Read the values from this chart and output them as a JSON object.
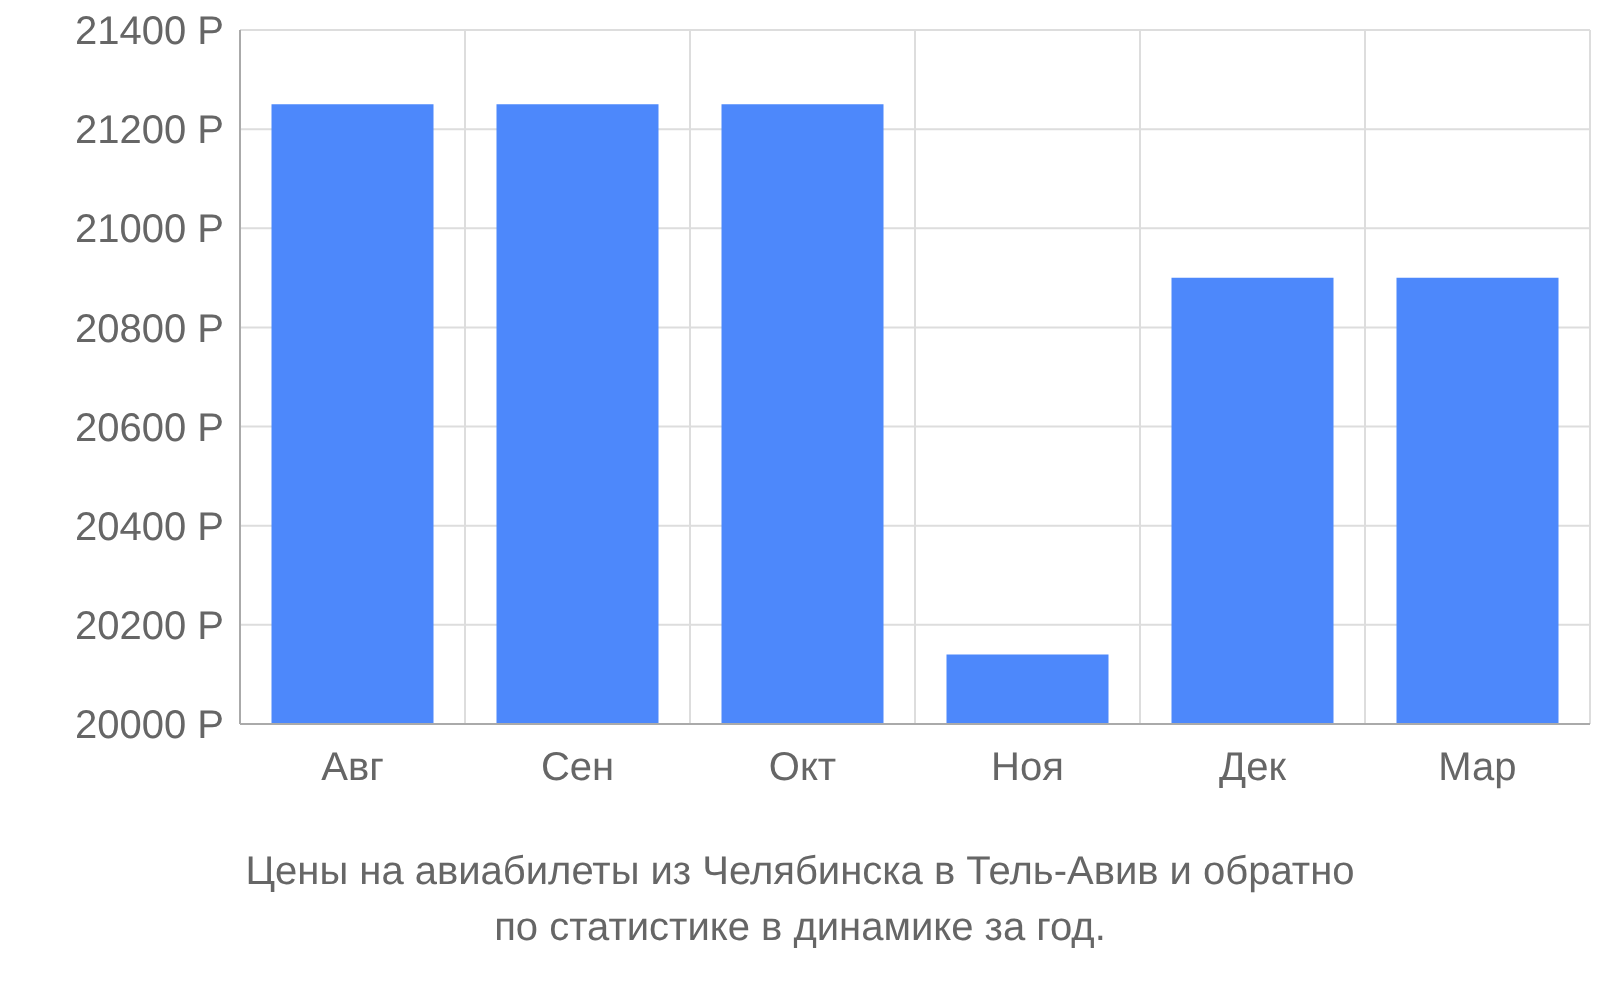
{
  "chart_data": {
    "type": "bar",
    "categories": [
      "Авг",
      "Сен",
      "Окт",
      "Ноя",
      "Дек",
      "Мар"
    ],
    "values": [
      21250,
      21250,
      21250,
      20140,
      20900,
      20900
    ],
    "color": "#4d88fb",
    "ylim": [
      20000,
      21400
    ],
    "yticks": [
      {
        "value": 20000,
        "label": "20000 Р"
      },
      {
        "value": 20200,
        "label": "20200 Р"
      },
      {
        "value": 20400,
        "label": "20400 Р"
      },
      {
        "value": 20600,
        "label": "20600 Р"
      },
      {
        "value": 20800,
        "label": "20800 Р"
      },
      {
        "value": 21000,
        "label": "21000 Р"
      },
      {
        "value": 21200,
        "label": "21200 Р"
      },
      {
        "value": 21400,
        "label": "21400 Р"
      }
    ],
    "grid": true,
    "annotations": [
      "Цены на авиабилеты из Челябинска в Тель-Авив и обратно",
      "по статистике в динамике за год."
    ]
  }
}
